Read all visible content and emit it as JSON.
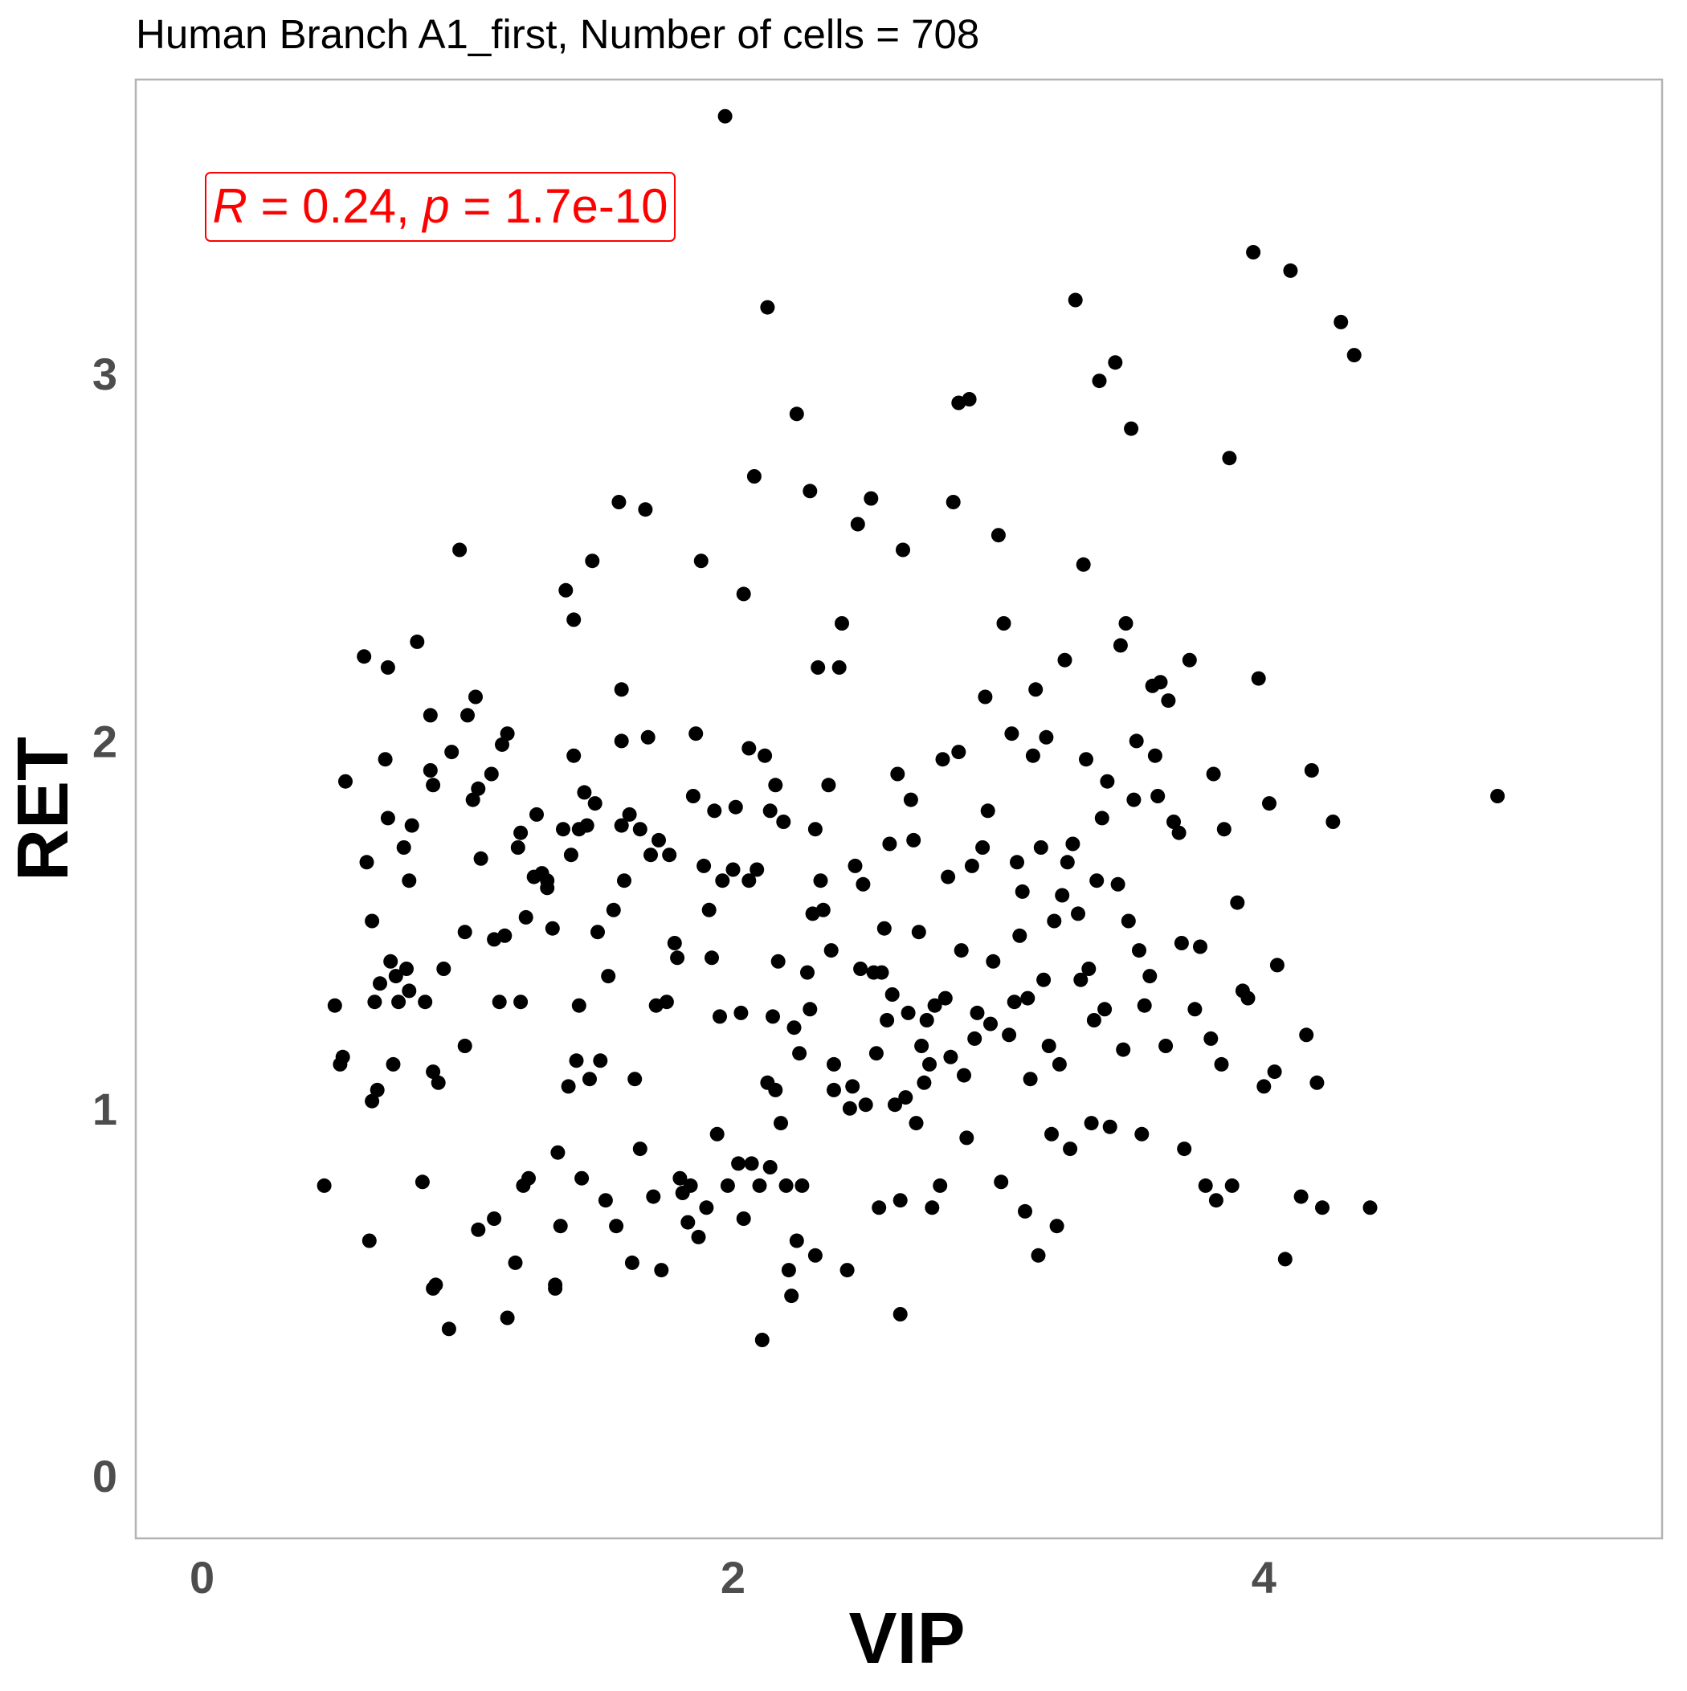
{
  "chart_data": {
    "type": "scatter",
    "title": "Human Branch A1_first, Number of cells = 708",
    "xlabel": "VIP",
    "ylabel": "RET",
    "xlim": [
      -0.25,
      5.5
    ],
    "ylim": [
      -0.17,
      3.8
    ],
    "x_ticks": [
      0,
      2,
      4
    ],
    "y_ticks": [
      0,
      1,
      2,
      3
    ],
    "grid": false,
    "annotation": {
      "r_symbol": "R",
      "r_eq": " = 0.24, ",
      "p_symbol": "p",
      "p_eq": " = 1.7e-10",
      "color": "#ff0000",
      "placement": "top-left"
    },
    "point_color": "#000000",
    "points": [
      [
        0.46,
        0.79
      ],
      [
        0.5,
        1.28
      ],
      [
        0.52,
        1.12
      ],
      [
        0.53,
        1.14
      ],
      [
        0.54,
        1.89
      ],
      [
        0.61,
        2.23
      ],
      [
        0.62,
        1.67
      ],
      [
        0.63,
        0.64
      ],
      [
        0.64,
        1.02
      ],
      [
        0.64,
        1.51
      ],
      [
        0.65,
        1.29
      ],
      [
        0.66,
        1.05
      ],
      [
        0.67,
        1.34
      ],
      [
        0.69,
        1.95
      ],
      [
        0.7,
        2.2
      ],
      [
        0.7,
        1.79
      ],
      [
        0.71,
        1.4
      ],
      [
        0.72,
        1.12
      ],
      [
        0.73,
        1.36
      ],
      [
        0.74,
        1.29
      ],
      [
        0.76,
        1.71
      ],
      [
        0.77,
        1.38
      ],
      [
        0.78,
        1.32
      ],
      [
        0.78,
        1.62
      ],
      [
        0.79,
        1.77
      ],
      [
        0.81,
        2.27
      ],
      [
        0.83,
        0.8
      ],
      [
        0.84,
        1.29
      ],
      [
        0.86,
        2.07
      ],
      [
        0.86,
        1.92
      ],
      [
        0.87,
        1.1
      ],
      [
        0.87,
        1.88
      ],
      [
        0.87,
        0.51
      ],
      [
        0.88,
        0.52
      ],
      [
        0.89,
        1.07
      ],
      [
        0.91,
        1.38
      ],
      [
        0.93,
        0.4
      ],
      [
        0.94,
        1.97
      ],
      [
        0.97,
        2.52
      ],
      [
        0.99,
        1.48
      ],
      [
        0.99,
        1.17
      ],
      [
        1.0,
        2.07
      ],
      [
        1.02,
        1.84
      ],
      [
        1.03,
        2.12
      ],
      [
        1.04,
        1.87
      ],
      [
        1.04,
        0.67
      ],
      [
        1.05,
        1.68
      ],
      [
        1.09,
        1.91
      ],
      [
        1.1,
        1.46
      ],
      [
        1.1,
        0.7
      ],
      [
        1.12,
        1.29
      ],
      [
        1.13,
        1.99
      ],
      [
        1.14,
        1.47
      ],
      [
        1.15,
        2.02
      ],
      [
        1.15,
        0.43
      ],
      [
        1.18,
        0.58
      ],
      [
        1.19,
        1.71
      ],
      [
        1.2,
        1.75
      ],
      [
        1.2,
        1.29
      ],
      [
        1.21,
        0.79
      ],
      [
        1.22,
        1.52
      ],
      [
        1.23,
        0.81
      ],
      [
        1.25,
        1.63
      ],
      [
        1.26,
        1.8
      ],
      [
        1.28,
        1.64
      ],
      [
        1.3,
        1.6
      ],
      [
        1.3,
        1.62
      ],
      [
        1.32,
        1.49
      ],
      [
        1.33,
        0.51
      ],
      [
        1.33,
        0.52
      ],
      [
        1.34,
        0.88
      ],
      [
        1.35,
        0.68
      ],
      [
        1.36,
        1.76
      ],
      [
        1.37,
        2.41
      ],
      [
        1.38,
        1.06
      ],
      [
        1.39,
        1.69
      ],
      [
        1.4,
        2.33
      ],
      [
        1.4,
        1.96
      ],
      [
        1.41,
        1.13
      ],
      [
        1.42,
        1.28
      ],
      [
        1.42,
        1.76
      ],
      [
        1.43,
        0.81
      ],
      [
        1.44,
        1.86
      ],
      [
        1.45,
        1.77
      ],
      [
        1.46,
        1.08
      ],
      [
        1.47,
        2.49
      ],
      [
        1.48,
        1.83
      ],
      [
        1.49,
        1.48
      ],
      [
        1.5,
        1.13
      ],
      [
        1.52,
        0.75
      ],
      [
        1.53,
        1.36
      ],
      [
        1.55,
        1.54
      ],
      [
        1.56,
        0.68
      ],
      [
        1.57,
        2.65
      ],
      [
        1.58,
        2.14
      ],
      [
        1.58,
        1.77
      ],
      [
        1.58,
        2.0
      ],
      [
        1.59,
        1.62
      ],
      [
        1.61,
        1.8
      ],
      [
        1.62,
        0.58
      ],
      [
        1.63,
        1.08
      ],
      [
        1.65,
        0.89
      ],
      [
        1.65,
        1.76
      ],
      [
        1.67,
        2.63
      ],
      [
        1.68,
        2.01
      ],
      [
        1.69,
        1.69
      ],
      [
        1.7,
        0.76
      ],
      [
        1.71,
        1.28
      ],
      [
        1.72,
        1.73
      ],
      [
        1.73,
        0.56
      ],
      [
        1.75,
        1.29
      ],
      [
        1.76,
        1.69
      ],
      [
        1.78,
        1.45
      ],
      [
        1.79,
        1.41
      ],
      [
        1.8,
        0.81
      ],
      [
        1.81,
        0.77
      ],
      [
        1.83,
        0.69
      ],
      [
        1.84,
        0.79
      ],
      [
        1.85,
        1.85
      ],
      [
        1.86,
        2.02
      ],
      [
        1.87,
        0.65
      ],
      [
        1.88,
        2.49
      ],
      [
        1.89,
        1.66
      ],
      [
        1.9,
        0.73
      ],
      [
        1.91,
        1.54
      ],
      [
        1.92,
        1.41
      ],
      [
        1.93,
        1.81
      ],
      [
        1.94,
        0.93
      ],
      [
        1.95,
        1.25
      ],
      [
        1.96,
        1.62
      ],
      [
        1.97,
        3.7
      ],
      [
        1.98,
        0.79
      ],
      [
        2.0,
        1.65
      ],
      [
        2.01,
        1.82
      ],
      [
        2.02,
        0.85
      ],
      [
        2.03,
        1.26
      ],
      [
        2.04,
        2.4
      ],
      [
        2.04,
        0.7
      ],
      [
        2.06,
        1.98
      ],
      [
        2.06,
        1.62
      ],
      [
        2.07,
        0.85
      ],
      [
        2.08,
        2.72
      ],
      [
        2.09,
        1.65
      ],
      [
        2.1,
        0.79
      ],
      [
        2.11,
        0.37
      ],
      [
        2.12,
        1.96
      ],
      [
        2.13,
        3.18
      ],
      [
        2.13,
        1.07
      ],
      [
        2.14,
        1.81
      ],
      [
        2.14,
        0.84
      ],
      [
        2.15,
        1.25
      ],
      [
        2.16,
        1.88
      ],
      [
        2.16,
        1.05
      ],
      [
        2.17,
        1.4
      ],
      [
        2.18,
        0.96
      ],
      [
        2.19,
        1.78
      ],
      [
        2.2,
        0.79
      ],
      [
        2.21,
        0.56
      ],
      [
        2.22,
        0.49
      ],
      [
        2.23,
        1.22
      ],
      [
        2.24,
        0.64
      ],
      [
        2.24,
        2.89
      ],
      [
        2.25,
        1.15
      ],
      [
        2.26,
        0.79
      ],
      [
        2.28,
        1.37
      ],
      [
        2.29,
        1.27
      ],
      [
        2.29,
        2.68
      ],
      [
        2.3,
        1.53
      ],
      [
        2.31,
        0.6
      ],
      [
        2.31,
        1.76
      ],
      [
        2.32,
        2.2
      ],
      [
        2.33,
        1.62
      ],
      [
        2.34,
        1.54
      ],
      [
        2.36,
        1.88
      ],
      [
        2.37,
        1.43
      ],
      [
        2.38,
        1.05
      ],
      [
        2.38,
        1.12
      ],
      [
        2.4,
        2.2
      ],
      [
        2.41,
        2.32
      ],
      [
        2.43,
        0.56
      ],
      [
        2.44,
        1.0
      ],
      [
        2.45,
        1.06
      ],
      [
        2.46,
        1.66
      ],
      [
        2.47,
        2.59
      ],
      [
        2.48,
        1.38
      ],
      [
        2.49,
        1.61
      ],
      [
        2.5,
        1.01
      ],
      [
        2.52,
        2.66
      ],
      [
        2.53,
        1.37
      ],
      [
        2.54,
        1.15
      ],
      [
        2.55,
        0.73
      ],
      [
        2.56,
        1.37
      ],
      [
        2.57,
        1.49
      ],
      [
        2.58,
        1.24
      ],
      [
        2.59,
        1.72
      ],
      [
        2.6,
        1.31
      ],
      [
        2.61,
        1.01
      ],
      [
        2.62,
        1.91
      ],
      [
        2.63,
        0.44
      ],
      [
        2.63,
        0.75
      ],
      [
        2.64,
        2.52
      ],
      [
        2.65,
        1.03
      ],
      [
        2.66,
        1.26
      ],
      [
        2.67,
        1.84
      ],
      [
        2.68,
        1.73
      ],
      [
        2.69,
        0.96
      ],
      [
        2.7,
        1.48
      ],
      [
        2.71,
        1.17
      ],
      [
        2.72,
        1.07
      ],
      [
        2.73,
        1.24
      ],
      [
        2.74,
        1.12
      ],
      [
        2.75,
        0.73
      ],
      [
        2.76,
        1.28
      ],
      [
        2.78,
        0.79
      ],
      [
        2.79,
        1.95
      ],
      [
        2.8,
        1.3
      ],
      [
        2.81,
        1.63
      ],
      [
        2.82,
        1.14
      ],
      [
        2.83,
        2.65
      ],
      [
        2.85,
        2.92
      ],
      [
        2.85,
        1.97
      ],
      [
        2.86,
        1.43
      ],
      [
        2.87,
        1.09
      ],
      [
        2.88,
        0.92
      ],
      [
        2.89,
        2.93
      ],
      [
        2.9,
        1.66
      ],
      [
        2.91,
        1.19
      ],
      [
        2.92,
        1.26
      ],
      [
        2.94,
        1.71
      ],
      [
        2.95,
        2.12
      ],
      [
        2.96,
        1.81
      ],
      [
        2.97,
        1.23
      ],
      [
        2.98,
        1.4
      ],
      [
        3.0,
        2.56
      ],
      [
        3.01,
        0.8
      ],
      [
        3.02,
        2.32
      ],
      [
        3.04,
        1.2
      ],
      [
        3.05,
        2.02
      ],
      [
        3.06,
        1.29
      ],
      [
        3.07,
        1.67
      ],
      [
        3.08,
        1.47
      ],
      [
        3.09,
        1.59
      ],
      [
        3.1,
        0.72
      ],
      [
        3.11,
        1.3
      ],
      [
        3.12,
        1.08
      ],
      [
        3.13,
        1.96
      ],
      [
        3.14,
        2.14
      ],
      [
        3.15,
        0.6
      ],
      [
        3.16,
        1.71
      ],
      [
        3.17,
        1.35
      ],
      [
        3.18,
        2.01
      ],
      [
        3.19,
        1.17
      ],
      [
        3.2,
        0.93
      ],
      [
        3.21,
        1.51
      ],
      [
        3.22,
        0.68
      ],
      [
        3.23,
        1.12
      ],
      [
        3.24,
        1.58
      ],
      [
        3.25,
        2.22
      ],
      [
        3.26,
        1.67
      ],
      [
        3.27,
        0.89
      ],
      [
        3.28,
        1.72
      ],
      [
        3.29,
        3.2
      ],
      [
        3.3,
        1.53
      ],
      [
        3.31,
        1.35
      ],
      [
        3.32,
        2.48
      ],
      [
        3.33,
        1.95
      ],
      [
        3.34,
        1.38
      ],
      [
        3.35,
        0.96
      ],
      [
        3.36,
        1.24
      ],
      [
        3.37,
        1.62
      ],
      [
        3.38,
        2.98
      ],
      [
        3.39,
        1.79
      ],
      [
        3.4,
        1.27
      ],
      [
        3.41,
        1.89
      ],
      [
        3.42,
        0.95
      ],
      [
        3.44,
        3.03
      ],
      [
        3.45,
        1.61
      ],
      [
        3.46,
        2.26
      ],
      [
        3.47,
        1.16
      ],
      [
        3.48,
        2.32
      ],
      [
        3.49,
        1.51
      ],
      [
        3.5,
        2.85
      ],
      [
        3.51,
        1.84
      ],
      [
        3.52,
        2.0
      ],
      [
        3.53,
        1.43
      ],
      [
        3.54,
        0.93
      ],
      [
        3.55,
        1.28
      ],
      [
        3.57,
        1.36
      ],
      [
        3.58,
        2.15
      ],
      [
        3.59,
        1.96
      ],
      [
        3.6,
        1.85
      ],
      [
        3.61,
        2.16
      ],
      [
        3.63,
        1.17
      ],
      [
        3.64,
        2.11
      ],
      [
        3.66,
        1.78
      ],
      [
        3.68,
        1.75
      ],
      [
        3.69,
        1.45
      ],
      [
        3.7,
        0.89
      ],
      [
        3.72,
        2.22
      ],
      [
        3.74,
        1.27
      ],
      [
        3.76,
        1.44
      ],
      [
        3.78,
        0.79
      ],
      [
        3.8,
        1.19
      ],
      [
        3.81,
        1.91
      ],
      [
        3.82,
        0.75
      ],
      [
        3.84,
        1.12
      ],
      [
        3.85,
        1.76
      ],
      [
        3.87,
        2.77
      ],
      [
        3.88,
        0.79
      ],
      [
        3.9,
        1.56
      ],
      [
        3.92,
        1.32
      ],
      [
        3.94,
        1.3
      ],
      [
        3.96,
        3.33
      ],
      [
        3.98,
        2.17
      ],
      [
        4.0,
        1.06
      ],
      [
        4.02,
        1.83
      ],
      [
        4.04,
        1.1
      ],
      [
        4.05,
        1.39
      ],
      [
        4.08,
        0.59
      ],
      [
        4.1,
        3.28
      ],
      [
        4.14,
        0.76
      ],
      [
        4.16,
        1.2
      ],
      [
        4.18,
        1.92
      ],
      [
        4.2,
        1.07
      ],
      [
        4.22,
        0.73
      ],
      [
        4.26,
        1.78
      ],
      [
        4.29,
        3.14
      ],
      [
        4.34,
        3.05
      ],
      [
        4.4,
        0.73
      ],
      [
        4.88,
        1.85
      ]
    ]
  }
}
